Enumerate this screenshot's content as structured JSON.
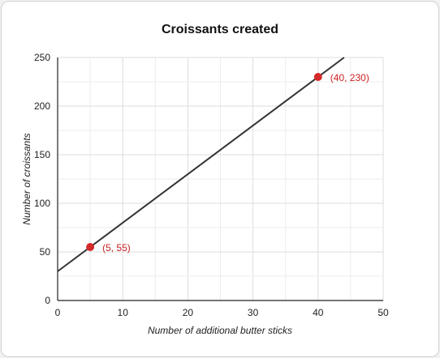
{
  "chart_data": {
    "type": "line",
    "title": "Croissants created",
    "xlabel": "Number of additional butter sticks",
    "ylabel": "Number of croissants",
    "xlim": [
      0,
      50
    ],
    "ylim": [
      0,
      250
    ],
    "xticks": [
      0,
      10,
      20,
      30,
      40,
      50
    ],
    "yticks": [
      0,
      50,
      100,
      150,
      200,
      250
    ],
    "grid": true,
    "line": {
      "intercept": 30,
      "slope": 5,
      "x_start": 0,
      "x_end": 44,
      "color": "#333333"
    },
    "points": [
      {
        "x": 5,
        "y": 55,
        "label": "(5, 55)"
      },
      {
        "x": 40,
        "y": 230,
        "label": "(40, 230)"
      }
    ],
    "point_color": "#d42a2a",
    "label_color": "#cc2222"
  }
}
